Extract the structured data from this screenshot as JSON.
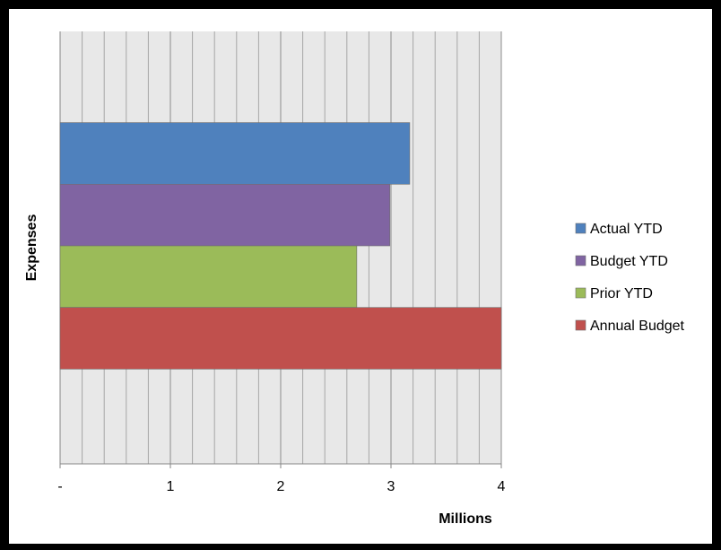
{
  "chart_data": {
    "type": "bar",
    "orientation": "horizontal",
    "categories": [
      "Expenses"
    ],
    "series": [
      {
        "name": "Actual YTD",
        "values": [
          3.17
        ],
        "color": "#4F81BD"
      },
      {
        "name": "Budget YTD",
        "values": [
          2.99
        ],
        "color": "#8064A2"
      },
      {
        "name": "Prior YTD",
        "values": [
          2.69
        ],
        "color": "#9BBB59"
      },
      {
        "name": "Annual Budget",
        "values": [
          4.0
        ],
        "color": "#C0504D"
      }
    ],
    "xlabel": "Millions",
    "ylabel": "Expenses",
    "xlim": [
      0,
      4
    ],
    "x_ticks": [
      "-",
      "1",
      "2",
      "3",
      "4"
    ],
    "grid": "vertical major and minor",
    "legend_position": "right",
    "plot_background": "#E8E8E8"
  }
}
